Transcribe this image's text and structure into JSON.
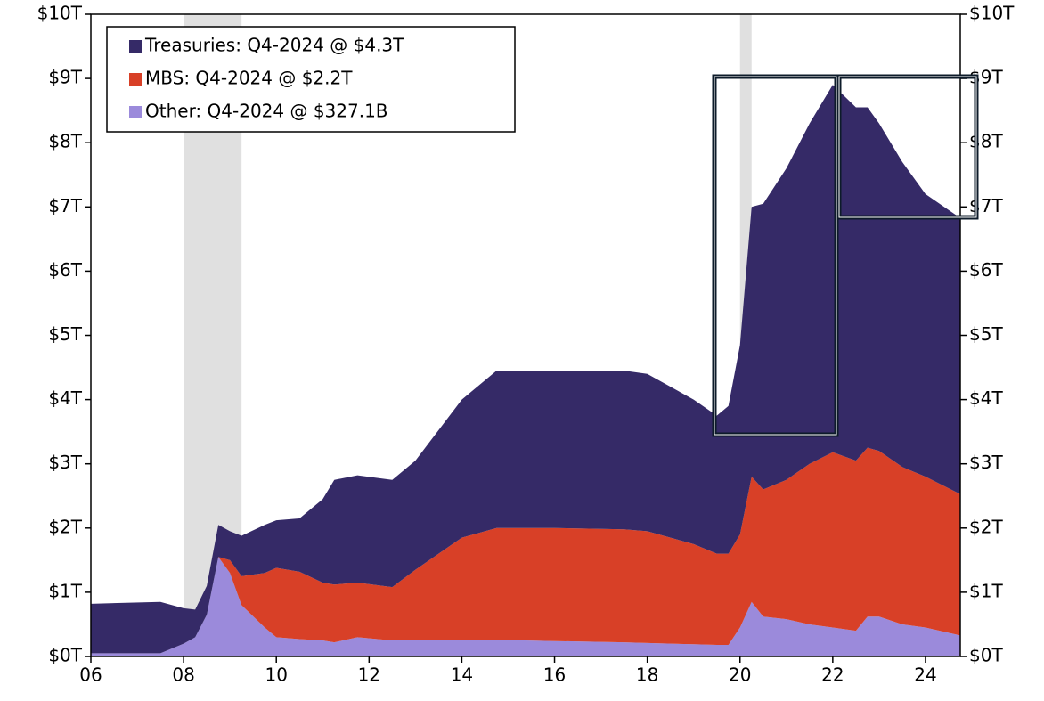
{
  "chart_data": {
    "type": "stacked_area",
    "x": [
      2006,
      2007.5,
      2008,
      2008.25,
      2008.5,
      2008.75,
      2009,
      2009.25,
      2009.75,
      2010,
      2010.5,
      2011,
      2011.25,
      2011.75,
      2012.5,
      2013,
      2014,
      2014.75,
      2016,
      2017.5,
      2018,
      2019,
      2019.5,
      2019.75,
      2020,
      2020.25,
      2020.5,
      2021,
      2021.5,
      2022,
      2022.5,
      2022.75,
      2023,
      2023.5,
      2024,
      2024.75
    ],
    "series": [
      {
        "name": "Treasuries: Q4-2024 @ $4.3T",
        "color": "#352a67",
        "values": [
          0.77,
          0.8,
          0.55,
          0.43,
          0.45,
          0.5,
          0.45,
          0.63,
          0.75,
          0.74,
          0.83,
          1.3,
          1.63,
          1.67,
          1.67,
          1.7,
          2.15,
          2.45,
          2.45,
          2.47,
          2.45,
          2.25,
          2.15,
          2.3,
          2.95,
          4.2,
          4.45,
          4.85,
          5.3,
          5.72,
          5.5,
          5.3,
          5.1,
          4.75,
          4.4,
          4.3
        ]
      },
      {
        "name": "MBS: Q4-2024 @ $2.2T",
        "color": "#d84027",
        "values": [
          0,
          0,
          0,
          0,
          0,
          0,
          0.2,
          0.45,
          0.85,
          1.08,
          1.05,
          0.9,
          0.9,
          0.85,
          0.83,
          1.1,
          1.59,
          1.74,
          1.76,
          1.76,
          1.74,
          1.56,
          1.42,
          1.42,
          1.45,
          1.95,
          1.98,
          2.17,
          2.5,
          2.73,
          2.65,
          2.63,
          2.58,
          2.45,
          2.35,
          2.2
        ]
      },
      {
        "name": "Other: Q4-2024 @ $327.1B",
        "color": "#9b8adb",
        "values": [
          0.05,
          0.05,
          0.2,
          0.3,
          0.65,
          1.55,
          1.3,
          0.8,
          0.45,
          0.3,
          0.27,
          0.25,
          0.22,
          0.3,
          0.25,
          0.25,
          0.26,
          0.26,
          0.24,
          0.22,
          0.21,
          0.19,
          0.18,
          0.18,
          0.45,
          0.85,
          0.62,
          0.58,
          0.5,
          0.45,
          0.4,
          0.62,
          0.62,
          0.5,
          0.45,
          0.3271
        ]
      }
    ],
    "recessions": [
      [
        2008,
        2009.25
      ],
      [
        2020,
        2020.25
      ]
    ],
    "recession_color": "#e0e0e0",
    "xlim": [
      2006,
      2024.75
    ],
    "xticks": [
      {
        "value": 2006,
        "label": "06"
      },
      {
        "value": 2008,
        "label": "08"
      },
      {
        "value": 2010,
        "label": "10"
      },
      {
        "value": 2012,
        "label": "12"
      },
      {
        "value": 2014,
        "label": "14"
      },
      {
        "value": 2016,
        "label": "16"
      },
      {
        "value": 2018,
        "label": "18"
      },
      {
        "value": 2020,
        "label": "20"
      },
      {
        "value": 2022,
        "label": "22"
      },
      {
        "value": 2024,
        "label": "24"
      }
    ],
    "ylim": [
      0,
      10
    ],
    "yticks": [
      {
        "value": 0,
        "label": "$0T"
      },
      {
        "value": 1,
        "label": "$1T"
      },
      {
        "value": 2,
        "label": "$2T"
      },
      {
        "value": 3,
        "label": "$3T"
      },
      {
        "value": 4,
        "label": "$4T"
      },
      {
        "value": 5,
        "label": "$5T"
      },
      {
        "value": 6,
        "label": "$6T"
      },
      {
        "value": 7,
        "label": "$7T"
      },
      {
        "value": 8,
        "label": "$8T"
      },
      {
        "value": 9,
        "label": "$9T"
      },
      {
        "value": 10,
        "label": "$10T"
      }
    ],
    "legend": "upper left"
  }
}
